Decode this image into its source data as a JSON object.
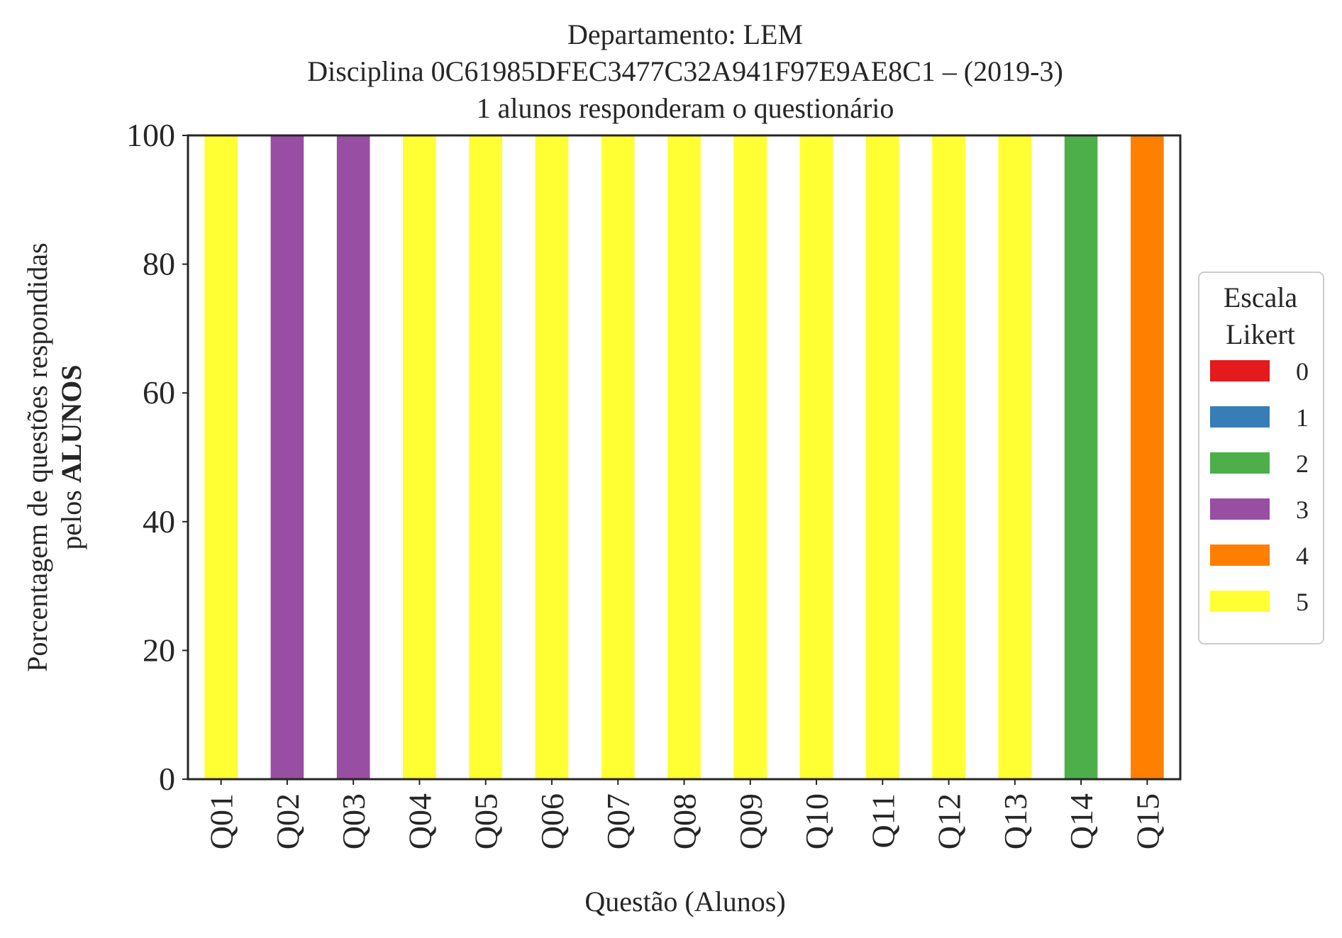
{
  "chart_data": {
    "type": "bar",
    "stacked": true,
    "title_lines": [
      "Departamento: LEM",
      "Disciplina 0C61985DFEC3477C32A941F97E9AE8C1 – (2019-3)",
      "1 alunos responderam o questionário"
    ],
    "ylabel_line1": "Porcentagem de questões respondidas",
    "ylabel_line2_prefix": "pelos ",
    "ylabel_line2_bold": "ALUNOS",
    "xlabel": "Questão (Alunos)",
    "ylim": [
      0,
      100
    ],
    "yticks": [
      0,
      20,
      40,
      60,
      80,
      100
    ],
    "categories": [
      "Q01",
      "Q02",
      "Q03",
      "Q04",
      "Q05",
      "Q06",
      "Q07",
      "Q08",
      "Q09",
      "Q10",
      "Q11",
      "Q12",
      "Q13",
      "Q14",
      "Q15"
    ],
    "series": [
      {
        "name": "0",
        "color": "#e41a1c",
        "values": [
          0,
          0,
          0,
          0,
          0,
          0,
          0,
          0,
          0,
          0,
          0,
          0,
          0,
          0,
          0
        ]
      },
      {
        "name": "1",
        "color": "#377eb8",
        "values": [
          0,
          0,
          0,
          0,
          0,
          0,
          0,
          0,
          0,
          0,
          0,
          0,
          0,
          0,
          0
        ]
      },
      {
        "name": "2",
        "color": "#4daf4a",
        "values": [
          0,
          0,
          0,
          0,
          0,
          0,
          0,
          0,
          0,
          0,
          0,
          0,
          0,
          100,
          0
        ]
      },
      {
        "name": "3",
        "color": "#984ea3",
        "values": [
          0,
          100,
          100,
          0,
          0,
          0,
          0,
          0,
          0,
          0,
          0,
          0,
          0,
          0,
          0
        ]
      },
      {
        "name": "4",
        "color": "#ff7f00",
        "values": [
          0,
          0,
          0,
          0,
          0,
          0,
          0,
          0,
          0,
          0,
          0,
          0,
          0,
          0,
          100
        ]
      },
      {
        "name": "5",
        "color": "#ffff33",
        "values": [
          100,
          0,
          0,
          100,
          100,
          100,
          100,
          100,
          100,
          100,
          100,
          100,
          100,
          0,
          0
        ]
      }
    ],
    "legend": {
      "title_lines": [
        "Escala",
        "Likert"
      ],
      "placement": "right"
    },
    "grid": false
  }
}
